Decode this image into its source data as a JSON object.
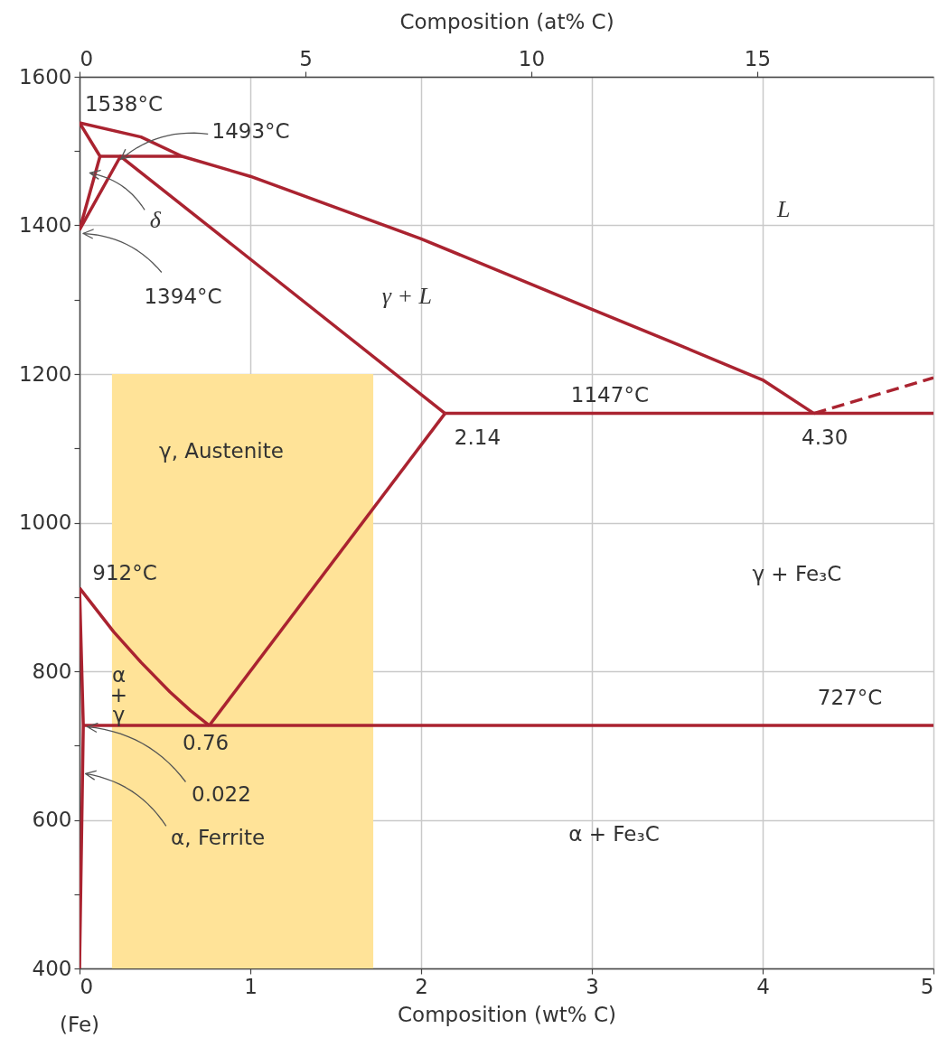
{
  "chart_data": {
    "type": "line",
    "xlabel": "Composition (wt% C)",
    "x2label": "Composition (at% C)",
    "xlim": [
      0,
      5
    ],
    "xticks": [
      0,
      1,
      2,
      3,
      4,
      5
    ],
    "x2lim": [
      0,
      18.9
    ],
    "x2ticks": [
      0,
      5,
      10,
      15
    ],
    "ylim": [
      400,
      1600
    ],
    "yticks": [
      400,
      {
        "value": 500,
        "label": null
      },
      600,
      {
        "value": 700,
        "label": null
      },
      800,
      {
        "value": 900,
        "label": null
      },
      1000,
      {
        "value": 1100,
        "label": null
      },
      1200,
      {
        "value": 1300,
        "label": null
      },
      1400,
      {
        "value": 1500,
        "label": null
      },
      1600
    ],
    "grid": true,
    "marker": "none",
    "line_style": "solid",
    "series": [
      {
        "type": "area",
        "color": "#ffe398",
        "x": [
          0.19,
          1.72
        ],
        "values": [
          1200,
          1200
        ]
      },
      {
        "color": "#aa2330",
        "x": [
          0,
          0.36,
          0.6,
          1.0,
          2.0,
          3.0,
          3.5,
          4.0,
          4.3
        ],
        "values": [
          1538,
          1519,
          1493,
          1466,
          1382,
          1287,
          1240,
          1192,
          1147
        ]
      },
      {
        "color": "#aa2330",
        "line_style": "dashed",
        "x": [
          4.3,
          5
        ],
        "values": [
          1147,
          1195
        ]
      },
      {
        "color": "#aa2330",
        "x": [
          0,
          0.12,
          0
        ],
        "values": [
          1538,
          1493,
          1394
        ]
      },
      {
        "color": "#aa2330",
        "x": [
          0.12,
          0.6
        ],
        "values": [
          1493,
          1493
        ]
      },
      {
        "color": "#aa2330",
        "x": [
          0,
          0.24,
          2.14
        ],
        "values": [
          1394,
          1493,
          1147
        ]
      },
      {
        "color": "#aa2330",
        "x": [
          2.14,
          0.76
        ],
        "values": [
          1147,
          727
        ]
      },
      {
        "color": "#aa2330",
        "x": [
          0,
          0.2,
          0.36,
          0.53,
          0.65,
          0.76
        ],
        "values": [
          912,
          853,
          812,
          772,
          747,
          727
        ]
      },
      {
        "color": "#aa2330",
        "x": [
          2.14,
          5
        ],
        "values": [
          1147,
          1147
        ]
      },
      {
        "color": "#aa2330",
        "x": [
          0,
          0.022,
          0
        ],
        "values": [
          912,
          727,
          400
        ]
      },
      {
        "color": "#aa2330",
        "x": [
          0.022,
          5
        ],
        "values": [
          727,
          727
        ]
      }
    ],
    "annotations": [
      {
        "text": "1538°C",
        "x": 0,
        "y": 1538
      },
      "1493°C",
      "δ",
      "1394°C",
      "L",
      "γ + L",
      {
        "text": "1147°C",
        "x": 3.1,
        "y": 1147
      },
      {
        "text": "2.14",
        "x": 2.14,
        "y": 1147
      },
      {
        "text": "4.30",
        "x": 4.3,
        "y": 1147
      },
      "γ, Austenite",
      {
        "text": "912°C",
        "x": 0,
        "y": 912
      },
      "γ + Fe₃C",
      "α + γ",
      {
        "text": "727°C",
        "x": 4.5,
        "y": 727
      },
      {
        "text": "0.76",
        "x": 0.76,
        "y": 727
      },
      "0.022",
      "α, Ferrite",
      "α + Fe₃C",
      "(Fe)"
    ]
  }
}
